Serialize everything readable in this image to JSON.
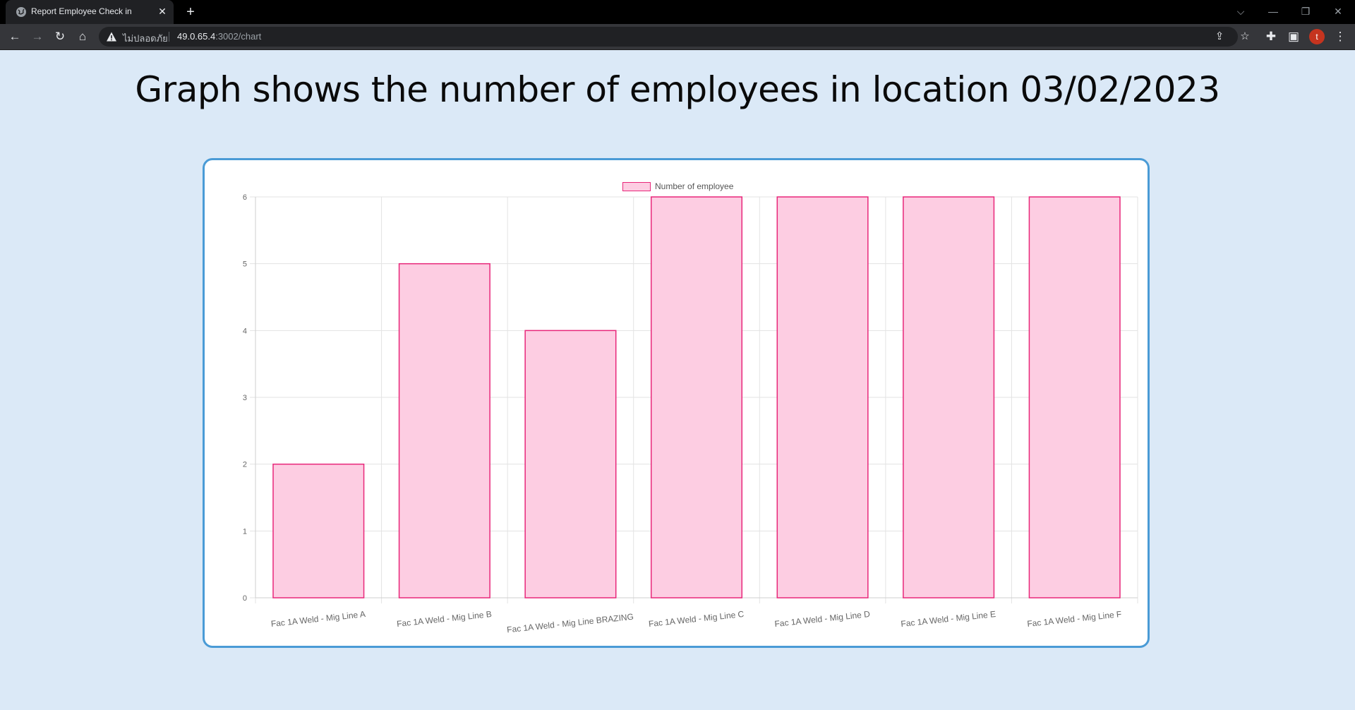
{
  "browser": {
    "tab_title": "Report Employee Check in",
    "tab_close": "✕",
    "new_tab": "+",
    "security_label": "ไม่ปลอดภัย",
    "url_host": "49.0.65.4",
    "url_path": ":3002/chart",
    "profile_initial": "t"
  },
  "page": {
    "title": "Graph shows the number of employees in location 03/02/2023"
  },
  "colors": {
    "page_background": "#dbe9f7",
    "card_border": "#4a9bd6",
    "bar_fill": "#fdcde2",
    "bar_stroke": "#e8277a"
  },
  "chart_data": {
    "type": "bar",
    "categories": [
      "Fac 1A Weld - Mig Line A",
      "Fac 1A Weld - Mig Line B",
      "Fac 1A Weld - Mig Line BRAZING",
      "Fac 1A Weld - Mig Line C",
      "Fac 1A Weld - Mig Line D",
      "Fac 1A Weld - Mig Line E",
      "Fac 1A Weld - Mig Line F"
    ],
    "series": [
      {
        "name": "Number of employee",
        "values": [
          2,
          5,
          4,
          6,
          6,
          6,
          6
        ]
      }
    ],
    "ylim": [
      0,
      6
    ],
    "yticks": [
      "0",
      "1",
      "2",
      "3",
      "4",
      "5",
      "6"
    ],
    "legend_position": "top-center",
    "grid": true
  }
}
